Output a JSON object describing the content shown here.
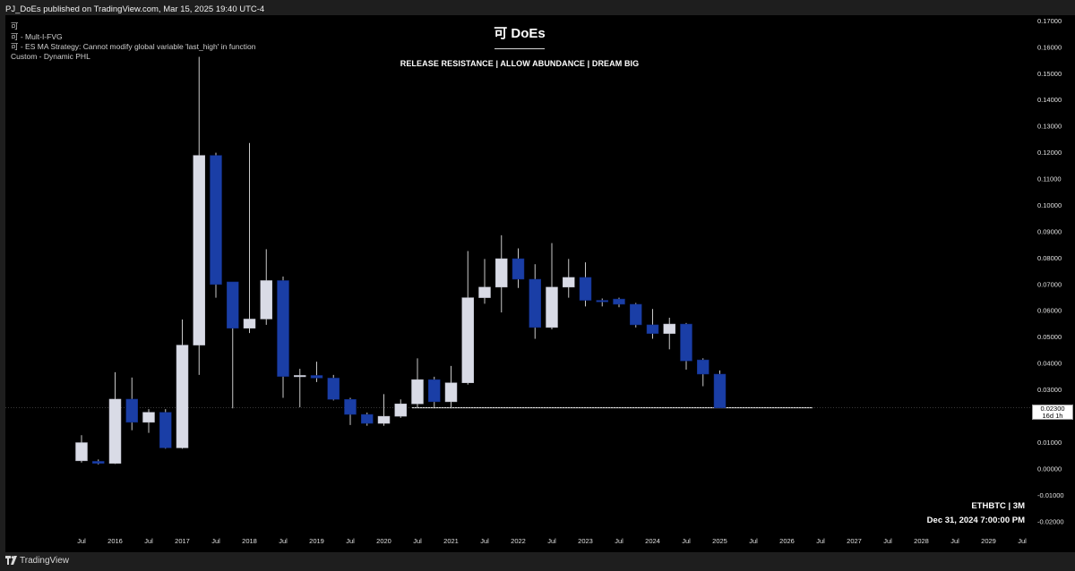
{
  "header": {
    "published": "PJ_DoEs published on TradingView.com, Mar 15, 2025 19:40 UTC-4",
    "indicators": [
      "可",
      "可 - Mult-I-FVG",
      "可 - ES MA Strategy: Cannot modify global variable 'last_high' in function",
      "Custom - Dynamic PHL"
    ]
  },
  "watermark": {
    "brand": "可 DoEs",
    "tagline": "RELEASE RESISTANCE  |  ALLOW ABUNDANCE  |  DREAM BIG"
  },
  "info": {
    "symbol": "ETHBTC | 3M",
    "bar_date": "Dec 31, 2024 7:00:00 PM"
  },
  "footer": {
    "brand": "TradingView"
  },
  "colors": {
    "background": "#000000",
    "frame": "#1e1e1e",
    "bull": "#d9dbe6",
    "bear": "#1a3ea6",
    "wick": "#c9c9c9",
    "hline": "#ffffff",
    "axis_text": "#e0e0e0"
  },
  "chart_data": {
    "type": "candlestick",
    "timeframe": "3M",
    "symbol": "ETHBTC",
    "ylim": [
      -0.025,
      0.172
    ],
    "y_ticks": [
      -0.02,
      -0.01,
      0.0,
      0.01,
      0.02,
      0.03,
      0.04,
      0.05,
      0.06,
      0.07,
      0.08,
      0.09,
      0.1,
      0.11,
      0.12,
      0.13,
      0.14,
      0.15,
      0.16,
      0.17
    ],
    "y_tick_labels": [
      "-0.02000",
      "-0.01000",
      "0.00000",
      "0.01000",
      "",
      "0.03000",
      "0.04000",
      "0.05000",
      "0.06000",
      "0.07000",
      "0.08000",
      "0.09000",
      "0.10000",
      "0.11000",
      "0.12000",
      "0.13000",
      "0.14000",
      "0.15000",
      "0.16000",
      "0.17000"
    ],
    "x_ticks": [
      "Jul",
      "2016",
      "Jul",
      "2017",
      "Jul",
      "2018",
      "Jul",
      "2019",
      "Jul",
      "2020",
      "Jul",
      "2021",
      "Jul",
      "2022",
      "Jul",
      "2023",
      "Jul",
      "2024",
      "Jul",
      "2025",
      "Jul",
      "2026",
      "Jul",
      "2027",
      "Jul",
      "2028",
      "Jul",
      "2029",
      "Jul"
    ],
    "current_price": {
      "value": 0.023,
      "label": "0.02300",
      "countdown": "16d 1h"
    },
    "horizontal_line": {
      "value": 0.023,
      "from": "2020-Q3",
      "to": "2026-Q2"
    },
    "candles": [
      {
        "period": "2015-Q3",
        "open": 0.0029,
        "high": 0.0126,
        "low": 0.0022,
        "close": 0.0098
      },
      {
        "period": "2015-Q4",
        "open": 0.0027,
        "high": 0.0034,
        "low": 0.0015,
        "close": 0.0019
      },
      {
        "period": "2016-Q1",
        "open": 0.0019,
        "high": 0.0365,
        "low": 0.0017,
        "close": 0.0263
      },
      {
        "period": "2016-Q2",
        "open": 0.0263,
        "high": 0.0345,
        "low": 0.0145,
        "close": 0.0175
      },
      {
        "period": "2016-Q3",
        "open": 0.0175,
        "high": 0.0225,
        "low": 0.0135,
        "close": 0.0213
      },
      {
        "period": "2016-Q4",
        "open": 0.0213,
        "high": 0.0225,
        "low": 0.0075,
        "close": 0.0078
      },
      {
        "period": "2017-Q1",
        "open": 0.0078,
        "high": 0.0565,
        "low": 0.0075,
        "close": 0.0468
      },
      {
        "period": "2017-Q2",
        "open": 0.0468,
        "high": 0.1562,
        "low": 0.0355,
        "close": 0.1188
      },
      {
        "period": "2017-Q3",
        "open": 0.1188,
        "high": 0.1198,
        "low": 0.0648,
        "close": 0.0698
      },
      {
        "period": "2017-Q4",
        "open": 0.0708,
        "high": 0.0708,
        "low": 0.0228,
        "close": 0.0532
      },
      {
        "period": "2018-Q1",
        "open": 0.0532,
        "high": 0.1235,
        "low": 0.0514,
        "close": 0.0567
      },
      {
        "period": "2018-Q2",
        "open": 0.0567,
        "high": 0.0832,
        "low": 0.0545,
        "close": 0.0713
      },
      {
        "period": "2018-Q3",
        "open": 0.0713,
        "high": 0.0728,
        "low": 0.0268,
        "close": 0.0349
      },
      {
        "period": "2018-Q4",
        "open": 0.0349,
        "high": 0.0378,
        "low": 0.0232,
        "close": 0.0353
      },
      {
        "period": "2019-Q1",
        "open": 0.0353,
        "high": 0.0405,
        "low": 0.0328,
        "close": 0.0343
      },
      {
        "period": "2019-Q2",
        "open": 0.0343,
        "high": 0.0355,
        "low": 0.0258,
        "close": 0.0262
      },
      {
        "period": "2019-Q3",
        "open": 0.0262,
        "high": 0.0268,
        "low": 0.0165,
        "close": 0.0205
      },
      {
        "period": "2019-Q4",
        "open": 0.0205,
        "high": 0.0212,
        "low": 0.0162,
        "close": 0.0171
      },
      {
        "period": "2020-Q1",
        "open": 0.0171,
        "high": 0.0282,
        "low": 0.0162,
        "close": 0.0198
      },
      {
        "period": "2020-Q2",
        "open": 0.0198,
        "high": 0.0262,
        "low": 0.0192,
        "close": 0.0245
      },
      {
        "period": "2020-Q3",
        "open": 0.0245,
        "high": 0.0418,
        "low": 0.0232,
        "close": 0.0337
      },
      {
        "period": "2020-Q4",
        "open": 0.0337,
        "high": 0.0348,
        "low": 0.0228,
        "close": 0.0253
      },
      {
        "period": "2021-Q1",
        "open": 0.0253,
        "high": 0.0389,
        "low": 0.0228,
        "close": 0.0325
      },
      {
        "period": "2021-Q2",
        "open": 0.0325,
        "high": 0.0825,
        "low": 0.0318,
        "close": 0.0648
      },
      {
        "period": "2021-Q3",
        "open": 0.0648,
        "high": 0.0795,
        "low": 0.0625,
        "close": 0.0688
      },
      {
        "period": "2021-Q4",
        "open": 0.0688,
        "high": 0.0885,
        "low": 0.0592,
        "close": 0.0796
      },
      {
        "period": "2022-Q1",
        "open": 0.0796,
        "high": 0.0835,
        "low": 0.0685,
        "close": 0.0718
      },
      {
        "period": "2022-Q2",
        "open": 0.0718,
        "high": 0.0775,
        "low": 0.0492,
        "close": 0.0535
      },
      {
        "period": "2022-Q3",
        "open": 0.0535,
        "high": 0.0855,
        "low": 0.0528,
        "close": 0.0688
      },
      {
        "period": "2022-Q4",
        "open": 0.0688,
        "high": 0.0795,
        "low": 0.0648,
        "close": 0.0725
      },
      {
        "period": "2023-Q1",
        "open": 0.0725,
        "high": 0.0782,
        "low": 0.0615,
        "close": 0.0638
      },
      {
        "period": "2023-Q2",
        "open": 0.0638,
        "high": 0.0645,
        "low": 0.0615,
        "close": 0.0632
      },
      {
        "period": "2023-Q3",
        "open": 0.0643,
        "high": 0.0648,
        "low": 0.0612,
        "close": 0.0623
      },
      {
        "period": "2023-Q4",
        "open": 0.0623,
        "high": 0.0628,
        "low": 0.0535,
        "close": 0.0545
      },
      {
        "period": "2024-Q1",
        "open": 0.0545,
        "high": 0.0605,
        "low": 0.0492,
        "close": 0.0512
      },
      {
        "period": "2024-Q2",
        "open": 0.0512,
        "high": 0.0572,
        "low": 0.0452,
        "close": 0.0548
      },
      {
        "period": "2024-Q3",
        "open": 0.0548,
        "high": 0.0552,
        "low": 0.0375,
        "close": 0.0408
      },
      {
        "period": "2024-Q4",
        "open": 0.0412,
        "high": 0.0418,
        "low": 0.0312,
        "close": 0.0358
      },
      {
        "period": "2025-Q1",
        "open": 0.0358,
        "high": 0.0372,
        "low": 0.023,
        "close": 0.023
      }
    ]
  }
}
